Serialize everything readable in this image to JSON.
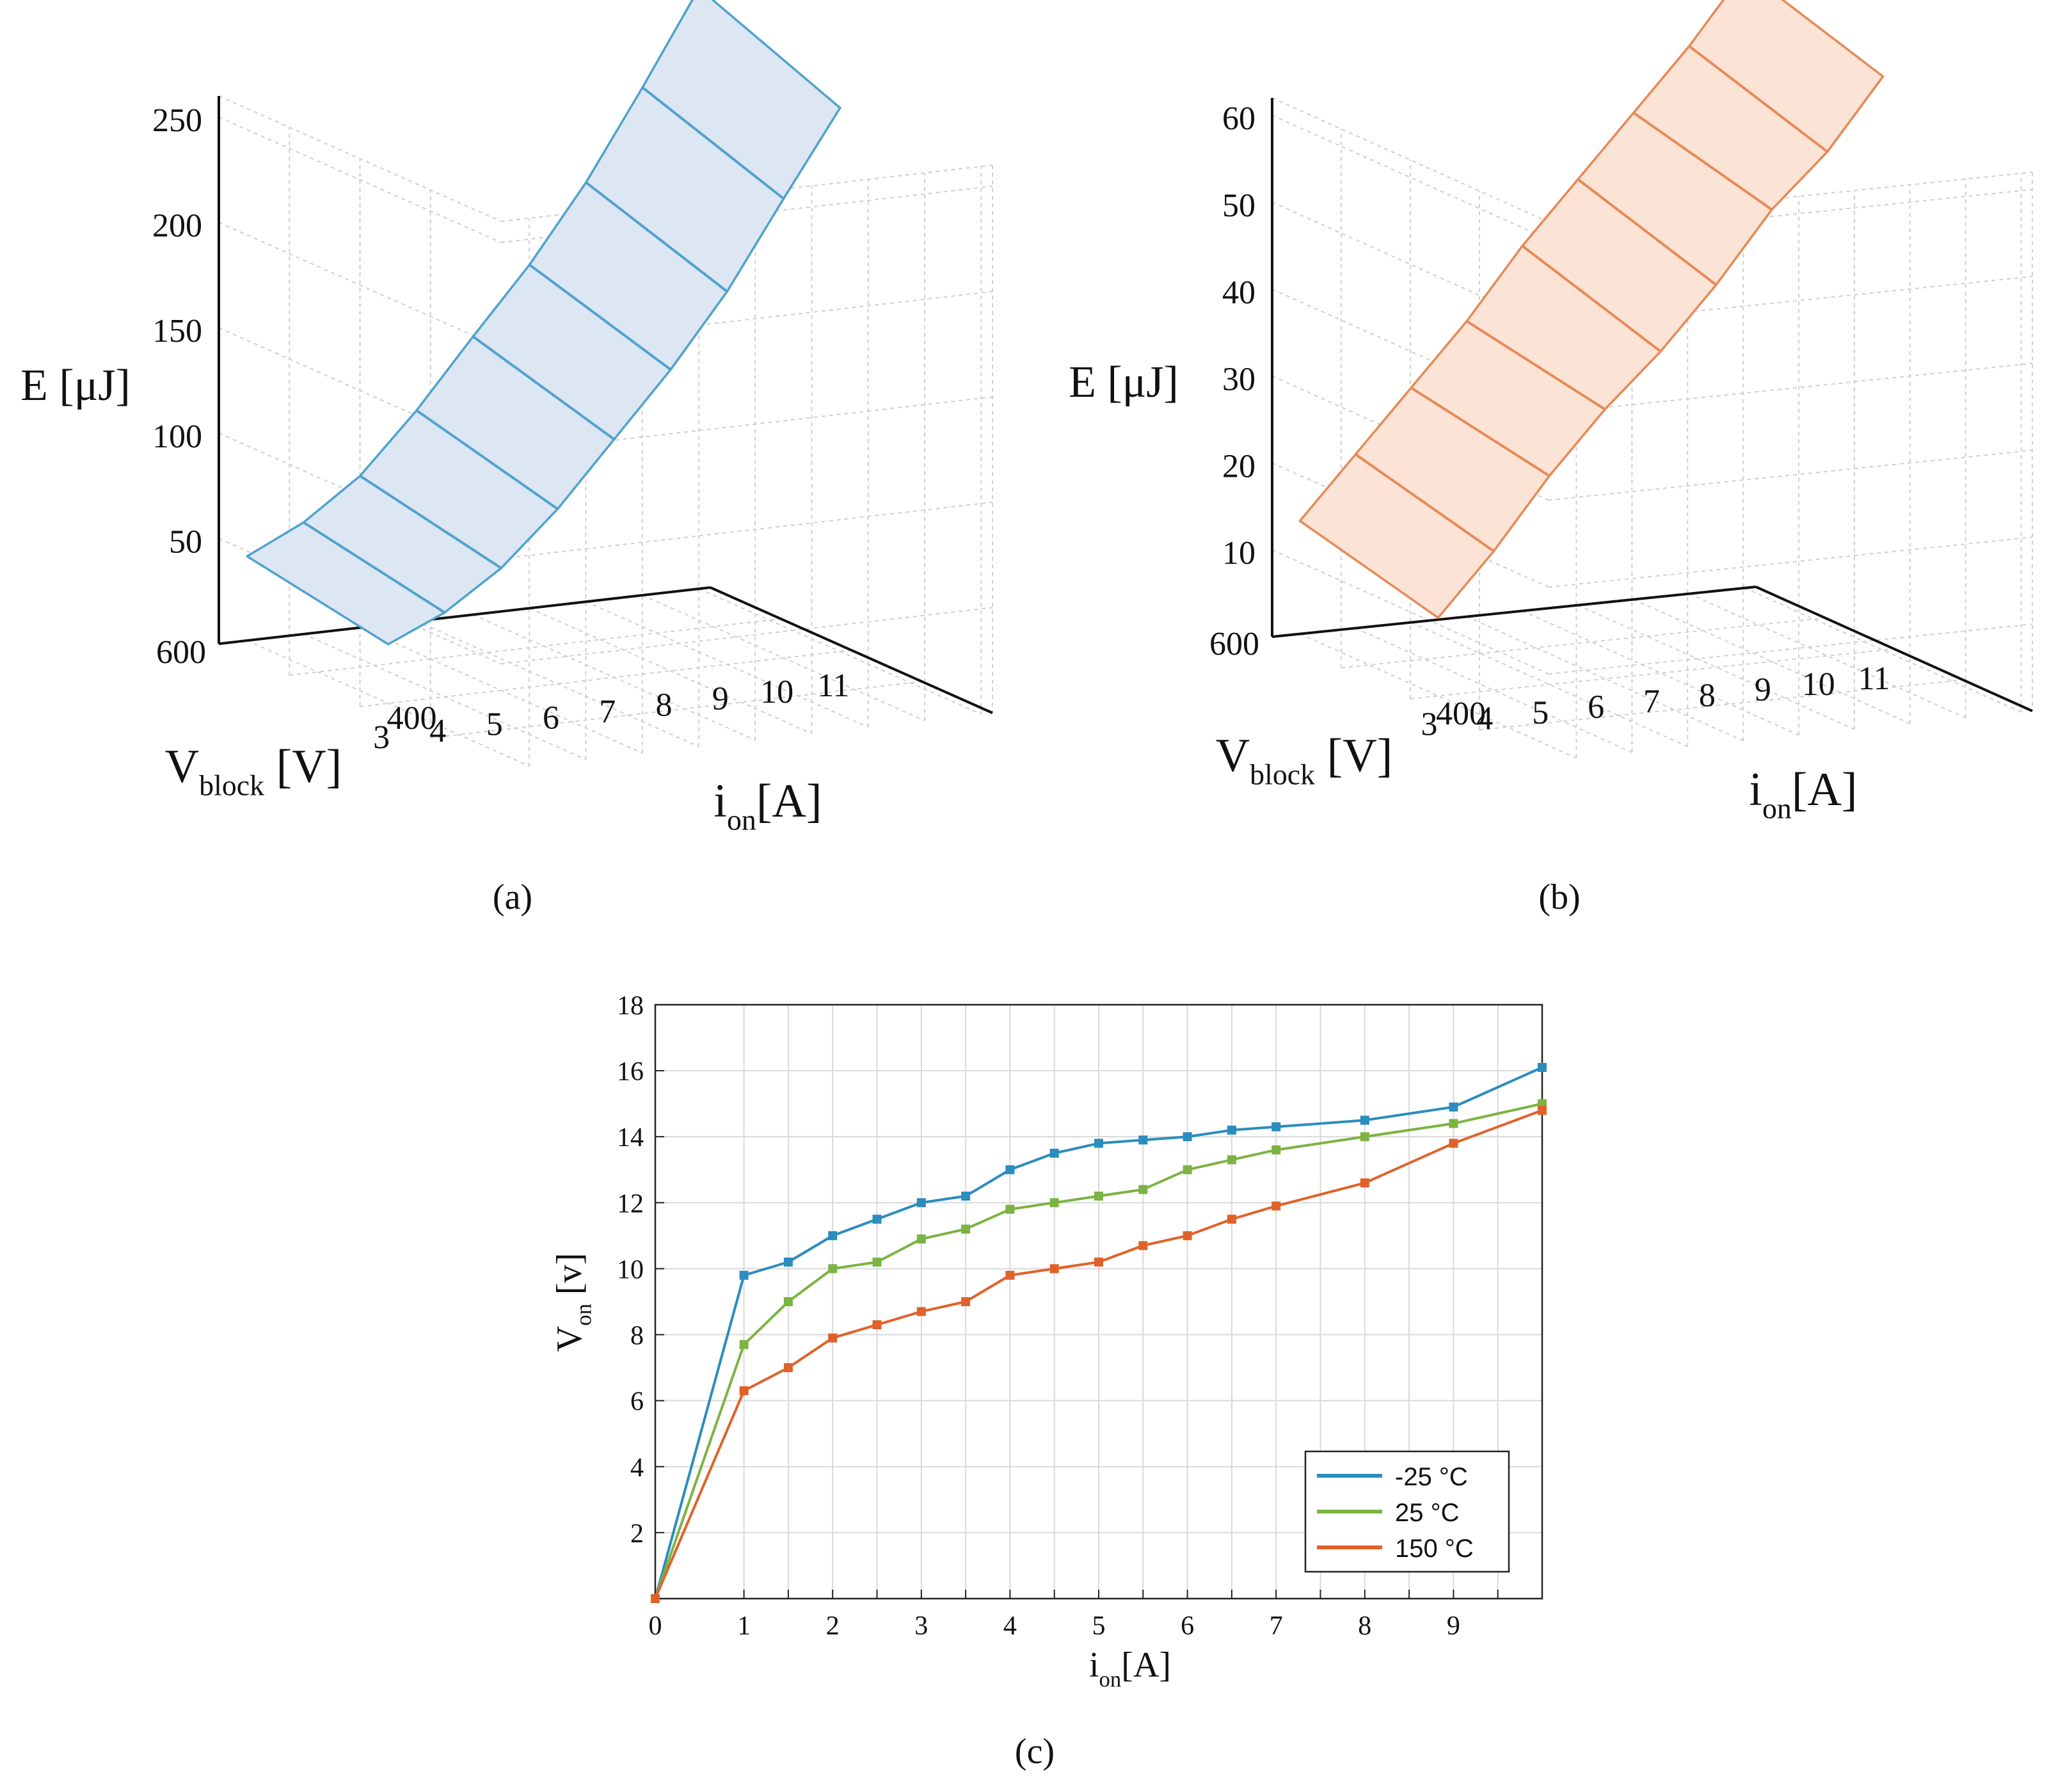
{
  "chart_data": [
    {
      "panel": "(a)",
      "type": "surface3d",
      "title": "",
      "zlabel": "E [μJ]",
      "ylabel": "V",
      "ylabel_sub": "block",
      "ylabel_unit": " [V]",
      "xlabel": "i",
      "xlabel_sub": "on",
      "xlabel_unit": "[A]",
      "z_ticks": [
        50,
        100,
        150,
        200,
        250
      ],
      "v_ticks": [
        400,
        600
      ],
      "i_ticks": [
        3,
        4,
        5,
        6,
        7,
        8,
        9,
        10,
        11
      ],
      "i_values": [
        3,
        4,
        5,
        6,
        7,
        8,
        9,
        10,
        11
      ],
      "voltages": [
        400,
        600
      ],
      "series": [
        {
          "name": "400",
          "values": [
            28,
            40,
            58,
            83,
            113,
            143,
            177,
            218,
            258
          ]
        },
        {
          "name": "600",
          "values": [
            40,
            53,
            72,
            100,
            132,
            163,
            199,
            241,
            285
          ]
        }
      ],
      "color": "#4fa3cc",
      "fill": "#dde6f3"
    },
    {
      "panel": "(b)",
      "type": "surface3d",
      "title": "",
      "zlabel": "E [μJ]",
      "ylabel": "V",
      "ylabel_sub": "block",
      "ylabel_unit": " [V]",
      "xlabel": "i",
      "xlabel_sub": "on",
      "xlabel_unit": "[A]",
      "z_ticks": [
        10,
        20,
        30,
        40,
        50,
        60
      ],
      "v_ticks": [
        400,
        600
      ],
      "i_ticks": [
        3,
        4,
        5,
        6,
        7,
        8,
        9,
        10,
        11
      ],
      "i_values": [
        3,
        4,
        5,
        6,
        7,
        8,
        9,
        10,
        11
      ],
      "voltages": [
        400,
        600
      ],
      "series": [
        {
          "name": "400",
          "values": [
            9,
            16,
            24,
            31,
            37,
            44,
            52,
            58,
            66
          ]
        },
        {
          "name": "600",
          "values": [
            13,
            20,
            27,
            34,
            42,
            49,
            56,
            63,
            71
          ]
        }
      ],
      "color": "#e58a57",
      "fill": "#fbe3d5"
    },
    {
      "panel": "(c)",
      "type": "line",
      "title": "",
      "xlabel": "i",
      "xlabel_sub": "on",
      "xlabel_unit": "[A]",
      "ylabel": "V",
      "ylabel_sub": "on",
      "ylabel_unit": " [v]",
      "xlim": [
        0,
        10
      ],
      "ylim": [
        0,
        18
      ],
      "x_ticks": [
        0,
        1,
        2,
        3,
        4,
        5,
        6,
        7,
        8,
        9
      ],
      "y_ticks": [
        2,
        4,
        6,
        8,
        10,
        12,
        14,
        16,
        18
      ],
      "x_grid": [
        0,
        1,
        1.5,
        2,
        2.5,
        3,
        3.5,
        4,
        4.5,
        5,
        5.5,
        6,
        6.5,
        7,
        7.5,
        8,
        8.5,
        9,
        9.5,
        10
      ],
      "grid": true,
      "legend_position": "bottom-right",
      "x": [
        0,
        1,
        1.5,
        2,
        2.5,
        3,
        3.5,
        4,
        4.5,
        5,
        5.5,
        6,
        6.5,
        7,
        8,
        9,
        10
      ],
      "series": [
        {
          "name": "-25 °C",
          "color": "#2b8cbe",
          "values": [
            0,
            9.8,
            10.2,
            11.0,
            11.5,
            12.0,
            12.2,
            13.0,
            13.5,
            13.8,
            13.9,
            14.0,
            14.2,
            14.3,
            14.5,
            14.9,
            16.1
          ]
        },
        {
          "name": " 25 °C",
          "color": "#7cb342",
          "values": [
            0,
            7.7,
            9.0,
            10.0,
            10.2,
            10.9,
            11.2,
            11.8,
            12.0,
            12.2,
            12.4,
            13.0,
            13.3,
            13.6,
            14.0,
            14.4,
            15.0
          ]
        },
        {
          "name": "150 °C",
          "color": "#e0622a",
          "values": [
            0,
            6.3,
            7.0,
            7.9,
            8.3,
            8.7,
            9.0,
            9.8,
            10.0,
            10.2,
            10.7,
            11.0,
            11.5,
            11.9,
            12.6,
            13.8,
            14.8
          ]
        }
      ]
    }
  ]
}
